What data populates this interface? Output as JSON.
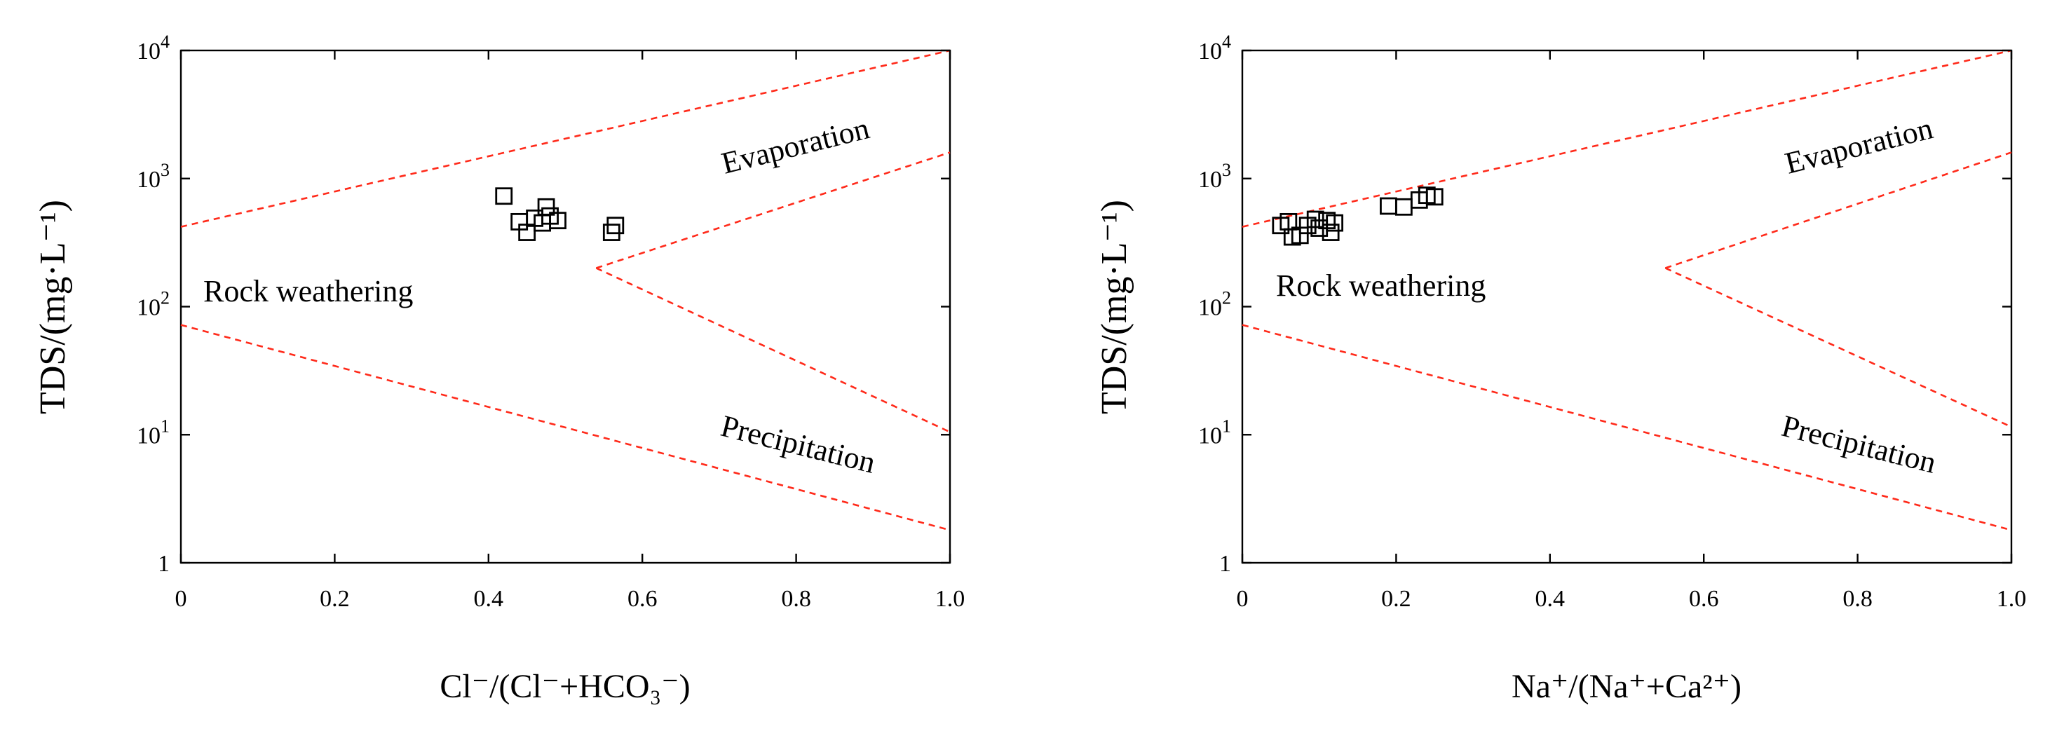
{
  "chart_data": [
    {
      "type": "scatter",
      "xlabel": "Cl⁻/(Cl⁻+HCO₃⁻)",
      "ylabel": "TDS/(mg·L⁻¹)",
      "xlim": [
        0,
        1.0
      ],
      "ylim": [
        1,
        10000
      ],
      "y_scale": "log",
      "x_ticks": [
        "0",
        "0.2",
        "0.4",
        "0.6",
        "0.8",
        "1.0"
      ],
      "y_ticks": [
        {
          "base": "1",
          "exp": ""
        },
        {
          "base": "10",
          "exp": "1"
        },
        {
          "base": "10",
          "exp": "2"
        },
        {
          "base": "10",
          "exp": "3"
        },
        {
          "base": "10",
          "exp": "4"
        }
      ],
      "region_labels": {
        "rock": "Rock weathering",
        "evaporation": "Evaporation",
        "precipitation": "Precipitation"
      },
      "marker": "open-square",
      "points": [
        {
          "x": 0.42,
          "y": 730
        },
        {
          "x": 0.44,
          "y": 460
        },
        {
          "x": 0.45,
          "y": 380
        },
        {
          "x": 0.46,
          "y": 490
        },
        {
          "x": 0.47,
          "y": 450
        },
        {
          "x": 0.475,
          "y": 600
        },
        {
          "x": 0.48,
          "y": 510
        },
        {
          "x": 0.49,
          "y": 470
        },
        {
          "x": 0.56,
          "y": 380
        },
        {
          "x": 0.565,
          "y": 430
        }
      ],
      "boundaries": {
        "upper": [
          [
            0,
            420
          ],
          [
            1.0,
            10000
          ]
        ],
        "lower": [
          [
            0,
            72
          ],
          [
            1.0,
            1.8
          ]
        ],
        "evaporation": [
          [
            0.54,
            200
          ],
          [
            1.0,
            1600
          ]
        ],
        "precipitation": [
          [
            0.54,
            200
          ],
          [
            1.0,
            10.5
          ]
        ]
      }
    },
    {
      "type": "scatter",
      "xlabel": "Na⁺/(Na⁺+Ca²⁺)",
      "ylabel": "TDS/(mg·L⁻¹)",
      "xlim": [
        0,
        1.0
      ],
      "ylim": [
        1,
        10000
      ],
      "y_scale": "log",
      "x_ticks": [
        "0",
        "0.2",
        "0.4",
        "0.6",
        "0.8",
        "1.0"
      ],
      "y_ticks": [
        {
          "base": "1",
          "exp": ""
        },
        {
          "base": "10",
          "exp": "1"
        },
        {
          "base": "10",
          "exp": "2"
        },
        {
          "base": "10",
          "exp": "3"
        },
        {
          "base": "10",
          "exp": "4"
        }
      ],
      "region_labels": {
        "rock": "Rock weathering",
        "evaporation": "Evaporation",
        "precipitation": "Precipitation"
      },
      "marker": "open-square",
      "points": [
        {
          "x": 0.05,
          "y": 430
        },
        {
          "x": 0.06,
          "y": 460
        },
        {
          "x": 0.065,
          "y": 350
        },
        {
          "x": 0.075,
          "y": 360
        },
        {
          "x": 0.085,
          "y": 430
        },
        {
          "x": 0.095,
          "y": 480
        },
        {
          "x": 0.1,
          "y": 410
        },
        {
          "x": 0.11,
          "y": 470
        },
        {
          "x": 0.115,
          "y": 380
        },
        {
          "x": 0.12,
          "y": 450
        },
        {
          "x": 0.19,
          "y": 610
        },
        {
          "x": 0.21,
          "y": 600
        },
        {
          "x": 0.23,
          "y": 680
        },
        {
          "x": 0.24,
          "y": 740
        },
        {
          "x": 0.25,
          "y": 720
        }
      ],
      "boundaries": {
        "upper": [
          [
            0,
            420
          ],
          [
            1.0,
            10000
          ]
        ],
        "lower": [
          [
            0,
            72
          ],
          [
            1.0,
            1.8
          ]
        ],
        "evaporation": [
          [
            0.55,
            200
          ],
          [
            1.0,
            1600
          ]
        ],
        "precipitation": [
          [
            0.55,
            200
          ],
          [
            1.0,
            11.5
          ]
        ]
      }
    }
  ]
}
